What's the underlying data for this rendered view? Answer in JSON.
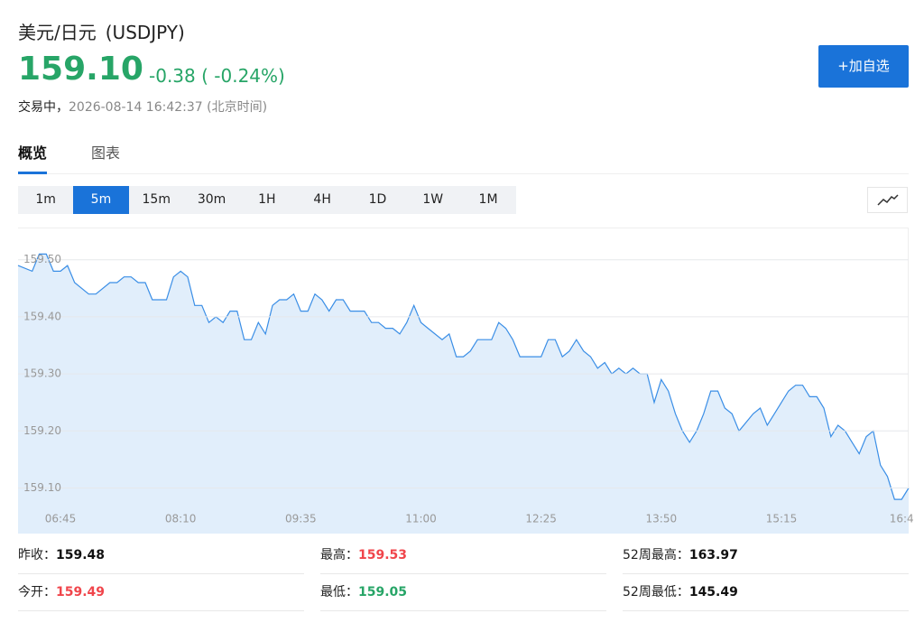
{
  "header": {
    "name": "美元/日元",
    "code": "(USDJPY)",
    "price": "159.10",
    "change": "-0.38 ( -0.24%)",
    "status": "交易中，",
    "time": "2026-08-14 16:42:37 (北京时间)",
    "button": "+加自选",
    "color": "#27a567"
  },
  "tabs": {
    "items": [
      "概览",
      "图表"
    ],
    "active": 0
  },
  "intervals": {
    "items": [
      "1m",
      "5m",
      "15m",
      "30m",
      "1H",
      "4H",
      "1D",
      "1W",
      "1M"
    ],
    "active": 1
  },
  "chart_data": {
    "type": "area",
    "color": "#3a8ee6",
    "fill": "#e1eefb",
    "grid": true,
    "x": [
      "06:15",
      "06:25",
      "06:30",
      "06:35",
      "06:40",
      "06:45",
      "06:50",
      "06:55",
      "07:05",
      "07:10",
      "07:20",
      "07:25",
      "07:30",
      "07:35",
      "07:40",
      "07:45",
      "07:50",
      "08:00",
      "08:05",
      "08:10",
      "08:15",
      "08:20",
      "08:25",
      "08:30",
      "08:35",
      "08:40",
      "08:45",
      "08:50",
      "08:55",
      "09:00",
      "09:05",
      "09:10",
      "09:15",
      "09:20",
      "09:25",
      "09:30",
      "09:35",
      "09:40",
      "09:45",
      "09:50",
      "09:55",
      "10:00",
      "10:05",
      "10:10",
      "10:20",
      "10:25",
      "10:30",
      "10:35",
      "10:40",
      "10:45",
      "10:50",
      "10:55",
      "11:00",
      "11:05",
      "11:15",
      "11:20",
      "11:25",
      "11:30",
      "11:35",
      "11:40",
      "11:50",
      "11:55",
      "12:00",
      "12:05",
      "12:10",
      "12:25",
      "12:30",
      "12:35",
      "12:40",
      "12:45",
      "12:50",
      "12:55",
      "13:00",
      "13:05",
      "13:10",
      "13:15",
      "13:20",
      "13:25",
      "13:30",
      "13:35",
      "13:40",
      "13:45",
      "13:50",
      "13:55",
      "14:00",
      "14:05",
      "14:10",
      "14:15",
      "14:20",
      "14:25",
      "14:30",
      "14:35",
      "14:40",
      "14:45",
      "14:55",
      "15:00",
      "15:05",
      "15:10",
      "15:15",
      "15:20",
      "15:25",
      "15:30",
      "15:35",
      "15:40",
      "15:45",
      "15:50",
      "15:55",
      "16:00",
      "16:05",
      "16:10",
      "16:15",
      "16:20",
      "16:25",
      "16:30",
      "16:35",
      "16:40",
      "16:45"
    ],
    "values": [
      159.49,
      159.48,
      159.51,
      159.51,
      159.48,
      159.48,
      159.49,
      159.46,
      159.44,
      159.44,
      159.46,
      159.46,
      159.47,
      159.47,
      159.46,
      159.46,
      159.43,
      159.43,
      159.47,
      159.48,
      159.47,
      159.42,
      159.42,
      159.39,
      159.4,
      159.39,
      159.41,
      159.41,
      159.36,
      159.36,
      159.39,
      159.37,
      159.42,
      159.43,
      159.43,
      159.44,
      159.41,
      159.41,
      159.44,
      159.43,
      159.41,
      159.43,
      159.43,
      159.41,
      159.41,
      159.39,
      159.39,
      159.38,
      159.38,
      159.37,
      159.39,
      159.42,
      159.39,
      159.38,
      159.36,
      159.37,
      159.33,
      159.33,
      159.34,
      159.36,
      159.36,
      159.39,
      159.38,
      159.36,
      159.33,
      159.33,
      159.36,
      159.36,
      159.33,
      159.34,
      159.36,
      159.34,
      159.33,
      159.31,
      159.32,
      159.3,
      159.31,
      159.3,
      159.31,
      159.3,
      159.3,
      159.25,
      159.29,
      159.27,
      159.23,
      159.2,
      159.18,
      159.2,
      159.23,
      159.27,
      159.27,
      159.24,
      159.23,
      159.2,
      159.23,
      159.24,
      159.21,
      159.23,
      159.25,
      159.27,
      159.28,
      159.28,
      159.26,
      159.26,
      159.24,
      159.19,
      159.21,
      159.2,
      159.18,
      159.16,
      159.19,
      159.2,
      159.14,
      159.12,
      159.08,
      159.08,
      159.1
    ],
    "xlim": [
      "06:15",
      "16:45"
    ],
    "xticks": [
      "06:45",
      "08:10",
      "09:35",
      "11:00",
      "12:25",
      "13:50",
      "15:15",
      {
        "value": "16:40",
        "label": "16:4"
      }
    ],
    "ylim": [
      159.02,
      159.555
    ],
    "yticks": [
      {
        "value": 159.1,
        "label": "159.10"
      },
      {
        "value": 159.2,
        "label": "159.20"
      },
      {
        "value": 159.3,
        "label": "159.30"
      },
      {
        "value": 159.4,
        "label": "159.40"
      },
      {
        "value": 159.5,
        "label": "159.50"
      }
    ]
  },
  "stats": [
    {
      "label": "昨收：",
      "value": "159.48",
      "color": "#111111"
    },
    {
      "label": "最高：",
      "value": "159.53",
      "color": "#f0454b"
    },
    {
      "label": "52周最高：",
      "value": "163.97",
      "color": "#111111"
    },
    {
      "label": "今开：",
      "value": "159.49",
      "color": "#f0454b"
    },
    {
      "label": "最低：",
      "value": "159.05",
      "color": "#27a567"
    },
    {
      "label": "52周最低：",
      "value": "145.49",
      "color": "#111111"
    }
  ]
}
